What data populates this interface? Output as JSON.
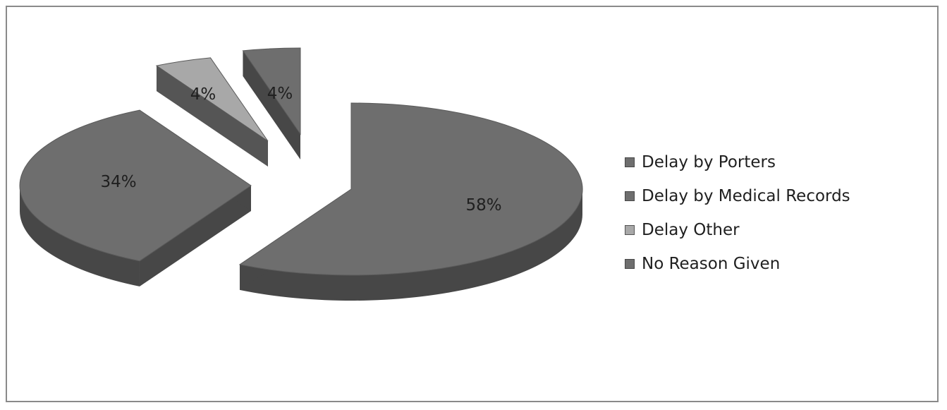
{
  "chart_data": {
    "type": "pie",
    "title": "",
    "style": "3d-exploded",
    "slices": [
      {
        "label": "Delay by Porters",
        "value": 58,
        "display": "58%",
        "color": "#6e6e6e",
        "side_color": "#474747"
      },
      {
        "label": "Delay by Medical Records",
        "value": 34,
        "display": "34%",
        "color": "#6e6e6e",
        "side_color": "#474747"
      },
      {
        "label": "Delay Other",
        "value": 4,
        "display": "4%",
        "color": "#a8a8a8",
        "side_color": "#555555"
      },
      {
        "label": "No Reason Given",
        "value": 4,
        "display": "4%",
        "color": "#6e6e6e",
        "side_color": "#474747"
      }
    ],
    "legend": {
      "placement": "right"
    }
  }
}
